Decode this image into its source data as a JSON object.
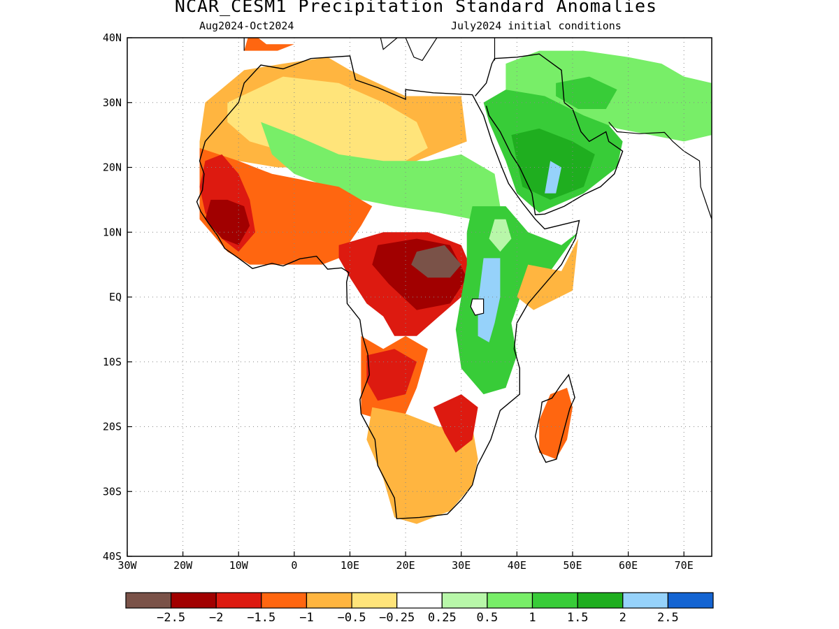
{
  "title": "NCAR_CESM1 Precipitation Standard Anomalies",
  "period": "Aug2024-Oct2024",
  "init": "July2024 initial conditions",
  "map": {
    "lon_range": [
      -30,
      75
    ],
    "lat_range": [
      -40,
      40
    ],
    "lon_ticks": [
      {
        "lon": -30,
        "label": "30W"
      },
      {
        "lon": -20,
        "label": "20W"
      },
      {
        "lon": -10,
        "label": "10W"
      },
      {
        "lon": 0,
        "label": "0"
      },
      {
        "lon": 10,
        "label": "10E"
      },
      {
        "lon": 20,
        "label": "20E"
      },
      {
        "lon": 30,
        "label": "30E"
      },
      {
        "lon": 40,
        "label": "40E"
      },
      {
        "lon": 50,
        "label": "50E"
      },
      {
        "lon": 60,
        "label": "60E"
      },
      {
        "lon": 70,
        "label": "70E"
      }
    ],
    "lat_ticks": [
      {
        "lat": 40,
        "label": "40N"
      },
      {
        "lat": 30,
        "label": "30N"
      },
      {
        "lat": 20,
        "label": "20N"
      },
      {
        "lat": 10,
        "label": "10N"
      },
      {
        "lat": 0,
        "label": "EQ"
      },
      {
        "lat": -10,
        "label": "10S"
      },
      {
        "lat": -20,
        "label": "20S"
      },
      {
        "lat": -30,
        "label": "30S"
      },
      {
        "lat": -40,
        "label": "40S"
      }
    ]
  },
  "colorbar": {
    "colors": [
      "#7a5248",
      "#a10000",
      "#dd1a10",
      "#ff6610",
      "#ffb540",
      "#ffe47a",
      "#ffffff",
      "#b8f7a9",
      "#78ee68",
      "#38cc38",
      "#1fae1f",
      "#96d2fa",
      "#1464d2"
    ],
    "labels": [
      "-2.5",
      "-2",
      "-1.5",
      "-1",
      "-0.5",
      "-0.25",
      "0.25",
      "0.5",
      "1",
      "1.5",
      "2",
      "2.5"
    ]
  },
  "anomaly_regions": [
    {
      "name": "north-africa-orange",
      "level": -0.5,
      "points": [
        [
          -17,
          24
        ],
        [
          -16,
          30
        ],
        [
          -9,
          35
        ],
        [
          -2,
          36
        ],
        [
          6,
          37
        ],
        [
          10,
          35
        ],
        [
          20,
          31
        ],
        [
          24,
          31
        ],
        [
          30,
          31
        ],
        [
          31,
          24
        ],
        [
          25,
          22
        ],
        [
          16,
          19
        ],
        [
          10,
          21
        ],
        [
          4,
          20
        ],
        [
          -3,
          20
        ],
        [
          -10,
          21
        ],
        [
          -17,
          21
        ]
      ]
    },
    {
      "name": "west-sahara-yellow",
      "level": -0.25,
      "points": [
        [
          -12,
          30
        ],
        [
          -2,
          34
        ],
        [
          8,
          33
        ],
        [
          16,
          30
        ],
        [
          22,
          27
        ],
        [
          24,
          23
        ],
        [
          18,
          20
        ],
        [
          10,
          21
        ],
        [
          0,
          22
        ],
        [
          -8,
          24
        ],
        [
          -12,
          27
        ]
      ]
    },
    {
      "name": "morocco-red",
      "level": -1,
      "points": [
        [
          -8,
          41
        ],
        [
          -5,
          39
        ],
        [
          0,
          39
        ],
        [
          -3,
          38
        ],
        [
          -9,
          38
        ]
      ]
    },
    {
      "name": "central-sahel-green",
      "level": 0.5,
      "points": [
        [
          -6,
          27
        ],
        [
          0,
          25
        ],
        [
          8,
          22
        ],
        [
          16,
          21
        ],
        [
          24,
          21
        ],
        [
          30,
          22
        ],
        [
          36,
          19
        ],
        [
          37,
          14
        ],
        [
          32,
          12
        ],
        [
          26,
          13
        ],
        [
          18,
          14
        ],
        [
          12,
          15
        ],
        [
          6,
          17
        ],
        [
          0,
          19
        ],
        [
          -4,
          22
        ]
      ]
    },
    {
      "name": "sahel-orange",
      "level": -1,
      "points": [
        [
          -17,
          23
        ],
        [
          -17,
          12
        ],
        [
          -15,
          10
        ],
        [
          -12,
          7
        ],
        [
          -8,
          5
        ],
        [
          -2,
          5
        ],
        [
          5,
          5
        ],
        [
          8,
          6
        ],
        [
          12,
          11
        ],
        [
          14,
          14
        ],
        [
          8,
          17
        ],
        [
          2,
          18
        ],
        [
          -4,
          19
        ],
        [
          -10,
          21
        ]
      ]
    },
    {
      "name": "west-africa-red",
      "level": -1.5,
      "points": [
        [
          -16,
          21
        ],
        [
          -17,
          17
        ],
        [
          -16,
          13
        ],
        [
          -13,
          9
        ],
        [
          -10,
          7
        ],
        [
          -7,
          10
        ],
        [
          -8,
          15
        ],
        [
          -10,
          19
        ],
        [
          -13,
          22
        ]
      ]
    },
    {
      "name": "guinea-darkred",
      "level": -2,
      "points": [
        [
          -15,
          15
        ],
        [
          -16,
          12
        ],
        [
          -13,
          9
        ],
        [
          -10,
          8
        ],
        [
          -8,
          11
        ],
        [
          -9,
          14
        ],
        [
          -12,
          15
        ]
      ]
    },
    {
      "name": "arabia-green",
      "level": 1,
      "points": [
        [
          34,
          30
        ],
        [
          38,
          32
        ],
        [
          45,
          33
        ],
        [
          52,
          30
        ],
        [
          55,
          28
        ],
        [
          59,
          24
        ],
        [
          58,
          20
        ],
        [
          52,
          16
        ],
        [
          44,
          13
        ],
        [
          40,
          16
        ],
        [
          38,
          21
        ],
        [
          35,
          27
        ]
      ]
    },
    {
      "name": "arabia-darkgreen",
      "level": 1.5,
      "points": [
        [
          39,
          25
        ],
        [
          44,
          26
        ],
        [
          50,
          24
        ],
        [
          54,
          22
        ],
        [
          52,
          17
        ],
        [
          46,
          15
        ],
        [
          41,
          17
        ]
      ]
    },
    {
      "name": "arabia-blue",
      "level": 2,
      "points": [
        [
          46,
          21
        ],
        [
          48,
          20
        ],
        [
          47,
          16
        ],
        [
          45,
          16
        ]
      ]
    },
    {
      "name": "middle-east-green",
      "level": 0.5,
      "points": [
        [
          38,
          36
        ],
        [
          44,
          38
        ],
        [
          52,
          38
        ],
        [
          60,
          37
        ],
        [
          66,
          36
        ],
        [
          70,
          34
        ],
        [
          75,
          33
        ],
        [
          75,
          25
        ],
        [
          70,
          24
        ],
        [
          64,
          25
        ],
        [
          58,
          26
        ],
        [
          52,
          28
        ],
        [
          45,
          31
        ],
        [
          38,
          32
        ]
      ]
    },
    {
      "name": "iran-green",
      "level": 1,
      "points": [
        [
          47,
          33
        ],
        [
          53,
          34
        ],
        [
          58,
          32
        ],
        [
          56,
          29
        ],
        [
          51,
          29
        ],
        [
          47,
          31
        ]
      ]
    },
    {
      "name": "central-africa-red",
      "level": -1.5,
      "points": [
        [
          8,
          8
        ],
        [
          16,
          10
        ],
        [
          24,
          10
        ],
        [
          30,
          8
        ],
        [
          32,
          4
        ],
        [
          30,
          0
        ],
        [
          26,
          -3
        ],
        [
          22,
          -6
        ],
        [
          18,
          -6
        ],
        [
          16,
          -3
        ],
        [
          13,
          -1
        ],
        [
          10,
          3
        ],
        [
          8,
          6
        ]
      ]
    },
    {
      "name": "congo-darkred",
      "level": -2,
      "points": [
        [
          15,
          8
        ],
        [
          22,
          9
        ],
        [
          28,
          8
        ],
        [
          31,
          3
        ],
        [
          28,
          -1
        ],
        [
          22,
          -2
        ],
        [
          17,
          2
        ],
        [
          14,
          5
        ]
      ]
    },
    {
      "name": "congo-brown",
      "level": -2.5,
      "points": [
        [
          22,
          7
        ],
        [
          27,
          8
        ],
        [
          30,
          5
        ],
        [
          28,
          3
        ],
        [
          24,
          3
        ],
        [
          21,
          5
        ]
      ]
    },
    {
      "name": "angola-orange",
      "level": -1,
      "points": [
        [
          12,
          -6
        ],
        [
          16,
          -8
        ],
        [
          20,
          -6
        ],
        [
          24,
          -8
        ],
        [
          22,
          -14
        ],
        [
          20,
          -18
        ],
        [
          16,
          -19
        ],
        [
          12,
          -18
        ],
        [
          12,
          -12
        ]
      ]
    },
    {
      "name": "angola-red",
      "level": -1.5,
      "points": [
        [
          13,
          -9
        ],
        [
          18,
          -8
        ],
        [
          22,
          -10
        ],
        [
          20,
          -15
        ],
        [
          15,
          -16
        ],
        [
          13,
          -13
        ]
      ]
    },
    {
      "name": "southern-africa-yellow",
      "level": -0.5,
      "points": [
        [
          14,
          -17
        ],
        [
          20,
          -18
        ],
        [
          26,
          -20
        ],
        [
          32,
          -20
        ],
        [
          33,
          -25
        ],
        [
          32,
          -29
        ],
        [
          28,
          -33
        ],
        [
          22,
          -35
        ],
        [
          18,
          -34
        ],
        [
          16,
          -28
        ],
        [
          13,
          -22
        ]
      ]
    },
    {
      "name": "zimbabwe-red",
      "level": -1.5,
      "points": [
        [
          25,
          -17
        ],
        [
          30,
          -15
        ],
        [
          33,
          -17
        ],
        [
          32,
          -22
        ],
        [
          29,
          -24
        ],
        [
          27,
          -21
        ]
      ]
    },
    {
      "name": "east-africa-green",
      "level": 1,
      "points": [
        [
          32,
          14
        ],
        [
          38,
          14
        ],
        [
          42,
          10
        ],
        [
          48,
          8
        ],
        [
          51,
          10
        ],
        [
          46,
          4
        ],
        [
          41,
          1
        ],
        [
          39,
          -4
        ],
        [
          40,
          -9
        ],
        [
          38,
          -14
        ],
        [
          34,
          -15
        ],
        [
          30,
          -11
        ],
        [
          29,
          -5
        ],
        [
          30,
          0
        ],
        [
          31,
          5
        ],
        [
          31,
          10
        ]
      ]
    },
    {
      "name": "ethiopia-yellow",
      "level": 0.25,
      "points": [
        [
          36,
          12
        ],
        [
          38,
          12
        ],
        [
          39,
          9
        ],
        [
          37,
          7
        ],
        [
          35,
          9
        ]
      ]
    },
    {
      "name": "kenya-blue",
      "level": 2,
      "points": [
        [
          34,
          6
        ],
        [
          37,
          6
        ],
        [
          37,
          0
        ],
        [
          36,
          -4
        ],
        [
          35,
          -7
        ],
        [
          33,
          -6
        ],
        [
          33,
          -1
        ]
      ]
    },
    {
      "name": "east-africa-yellow",
      "level": -0.5,
      "points": [
        [
          42,
          5
        ],
        [
          48,
          4
        ],
        [
          51,
          9
        ],
        [
          50,
          1
        ],
        [
          43,
          -2
        ],
        [
          40,
          0
        ]
      ]
    },
    {
      "name": "madagascar-orange",
      "level": -1,
      "points": [
        [
          46,
          -15
        ],
        [
          49,
          -14
        ],
        [
          50,
          -17
        ],
        [
          49,
          -22
        ],
        [
          47,
          -25
        ],
        [
          44,
          -24
        ],
        [
          44,
          -19
        ]
      ]
    }
  ]
}
